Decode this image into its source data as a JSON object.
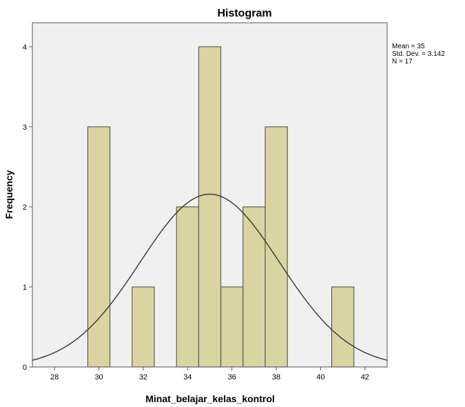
{
  "chart_data": {
    "type": "bar",
    "title": "Histogram",
    "xlabel": "Minat_belajar_kelas_kontrol",
    "ylabel": "Frequency",
    "xlim": [
      27,
      43
    ],
    "ylim": [
      0,
      4.3
    ],
    "x_ticks": [
      28,
      30,
      32,
      34,
      36,
      38,
      40,
      42
    ],
    "y_ticks": [
      0,
      1,
      2,
      3,
      4
    ],
    "bin_width": 1,
    "bins": [
      {
        "center": 30,
        "value": 3
      },
      {
        "center": 32,
        "value": 1
      },
      {
        "center": 34,
        "value": 2
      },
      {
        "center": 35,
        "value": 4
      },
      {
        "center": 36,
        "value": 1
      },
      {
        "center": 37,
        "value": 2
      },
      {
        "center": 38,
        "value": 3
      },
      {
        "center": 41,
        "value": 1
      }
    ],
    "normal_curve": {
      "mean": 35,
      "std_dev": 3.142,
      "n": 17
    },
    "stats_lines": [
      "Mean = 35",
      "Std. Dev. = 3.142",
      "N = 17"
    ],
    "colors": {
      "bar_fill": "#d9d4a2",
      "bar_stroke": "#444444",
      "plot_bg": "#f0f0f0",
      "curve": "#333333"
    },
    "grid": false,
    "legend": "none"
  }
}
